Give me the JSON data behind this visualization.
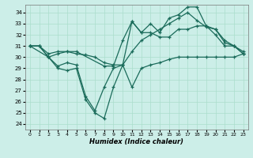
{
  "bg_color": "#cceee8",
  "grid_color": "#aaddcc",
  "line_color": "#1a6b5a",
  "xlabel": "Humidex (Indice chaleur)",
  "xlim": [
    -0.5,
    23.5
  ],
  "ylim": [
    23.5,
    34.7
  ],
  "yticks": [
    24,
    25,
    26,
    27,
    28,
    29,
    30,
    31,
    32,
    33,
    34
  ],
  "xticks": [
    0,
    1,
    2,
    3,
    4,
    5,
    6,
    7,
    8,
    9,
    10,
    11,
    12,
    13,
    14,
    15,
    16,
    17,
    18,
    19,
    20,
    21,
    22,
    23
  ],
  "series_bottom_x": [
    0,
    1,
    2,
    3,
    4,
    5,
    6,
    7,
    8,
    9,
    10,
    11,
    12,
    13,
    14,
    15,
    16,
    17,
    18,
    19,
    20,
    21,
    22,
    23
  ],
  "series_bottom_y": [
    31,
    31,
    30,
    29,
    28.8,
    29,
    26.2,
    25.0,
    24.5,
    27.3,
    29.3,
    27.3,
    29,
    29.3,
    29.5,
    29.8,
    30,
    30,
    30,
    30,
    30,
    30,
    30,
    30.3
  ],
  "series_mid1_x": [
    0,
    1,
    2,
    3,
    4,
    5,
    6,
    7,
    8,
    9,
    10,
    11,
    12,
    13,
    14,
    15,
    16,
    17,
    18,
    19,
    20,
    21,
    22,
    23
  ],
  "series_mid1_y": [
    31,
    31,
    30.3,
    30.5,
    30.5,
    30.3,
    30.2,
    30,
    29.5,
    29.3,
    29.3,
    30.5,
    31.5,
    32,
    32.5,
    33,
    33.5,
    34,
    33.3,
    32.7,
    32.5,
    31.5,
    31,
    30.5
  ],
  "series_mid2_x": [
    0,
    2,
    3,
    4,
    5,
    8,
    9,
    10,
    11,
    12,
    13,
    14,
    15,
    16,
    17,
    18,
    19,
    20,
    21,
    22,
    23
  ],
  "series_mid2_y": [
    31,
    30,
    30.3,
    30.5,
    30.5,
    29.2,
    29.2,
    31.5,
    33.2,
    32.2,
    32.2,
    31.8,
    31.8,
    32.5,
    32.5,
    32.8,
    32.8,
    32.5,
    31.3,
    31,
    30.3
  ],
  "series_top_x": [
    0,
    1,
    2,
    3,
    4,
    5,
    6,
    7,
    8,
    9,
    10,
    11,
    12,
    13,
    14,
    15,
    16,
    17,
    18,
    19,
    20,
    21,
    22,
    23
  ],
  "series_top_y": [
    31,
    31,
    30,
    29.2,
    29.5,
    29.3,
    26.5,
    25.2,
    27.3,
    29,
    29.3,
    33.2,
    32.2,
    33,
    32.2,
    33.5,
    33.8,
    34.5,
    34.5,
    32.8,
    32,
    31,
    31,
    30.3
  ]
}
